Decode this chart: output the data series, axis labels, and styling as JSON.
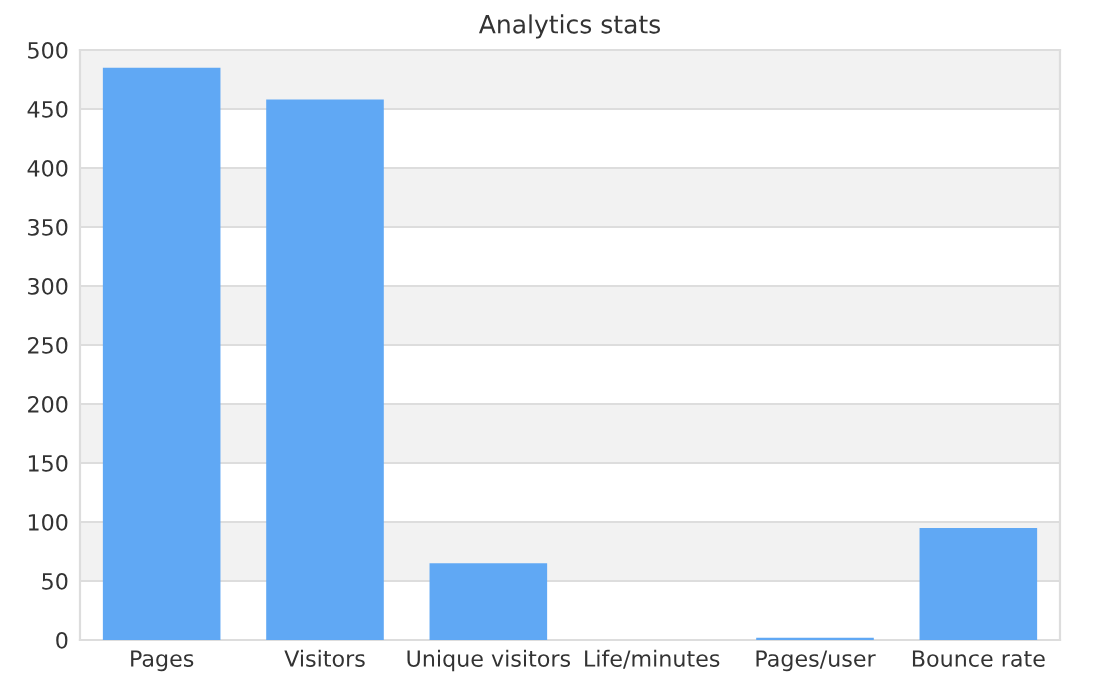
{
  "chart_data": {
    "type": "bar",
    "title": "Analytics stats",
    "categories": [
      "Pages",
      "Visitors",
      "Unique visitors",
      "Life/minutes",
      "Pages/user",
      "Bounce rate"
    ],
    "values": [
      485,
      458,
      65,
      0,
      2,
      95
    ],
    "color": "#60a8f4",
    "ylim": [
      0,
      500
    ],
    "yticks": [
      0,
      50,
      100,
      150,
      200,
      250,
      300,
      350,
      400,
      450,
      500
    ],
    "grid": "y"
  }
}
